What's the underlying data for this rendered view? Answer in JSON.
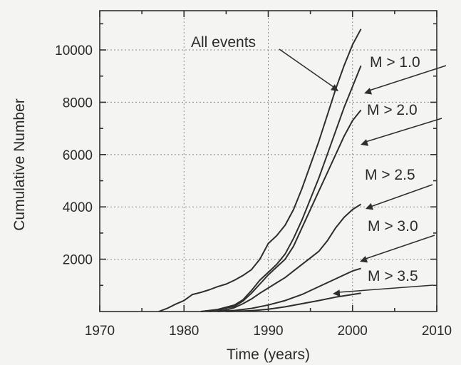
{
  "chart_data": {
    "type": "line",
    "title": "",
    "xlabel": "Time (years)",
    "ylabel": "Cumulative Number",
    "xlim": [
      1970,
      2010
    ],
    "ylim": [
      0,
      11500
    ],
    "xticks": [
      1970,
      1980,
      1990,
      2000,
      2010
    ],
    "yticks": [
      2000,
      4000,
      6000,
      8000,
      10000
    ],
    "grid": "dotted",
    "series": [
      {
        "name": "All events",
        "x": [
          1977,
          1978,
          1979,
          1980,
          1981,
          1982,
          1983,
          1984,
          1985,
          1986,
          1987,
          1988,
          1989,
          1990,
          1991,
          1992,
          1993,
          1994,
          1995,
          1996,
          1997,
          1998,
          1999,
          2000,
          2001
        ],
        "y": [
          0,
          120,
          280,
          420,
          650,
          730,
          830,
          950,
          1050,
          1200,
          1380,
          1600,
          2000,
          2600,
          2900,
          3300,
          3900,
          4700,
          5600,
          6500,
          7500,
          8500,
          9400,
          10200,
          10800
        ]
      },
      {
        "name": "M > 1.0",
        "x": [
          1982,
          1984,
          1986,
          1987,
          1988,
          1989,
          1990,
          1991,
          1992,
          1993,
          1994,
          1995,
          1996,
          1997,
          1998,
          1999,
          2000,
          2001
        ],
        "y": [
          0,
          80,
          250,
          450,
          800,
          1200,
          1500,
          1800,
          2200,
          2800,
          3500,
          4300,
          5100,
          6000,
          6900,
          7800,
          8600,
          9400
        ]
      },
      {
        "name": "M > 2.0",
        "x": [
          1982,
          1984,
          1986,
          1987,
          1988,
          1989,
          1990,
          1991,
          1992,
          1993,
          1994,
          1995,
          1996,
          1997,
          1998,
          1999,
          2000,
          2001
        ],
        "y": [
          0,
          60,
          200,
          400,
          700,
          1050,
          1400,
          1700,
          2000,
          2500,
          3200,
          3900,
          4600,
          5300,
          6000,
          6700,
          7300,
          7700
        ]
      },
      {
        "name": "M > 2.5",
        "x": [
          1983,
          1985,
          1986,
          1987,
          1988,
          1989,
          1990,
          1991,
          1992,
          1993,
          1994,
          1995,
          1996,
          1997,
          1998,
          1999,
          2000,
          2001
        ],
        "y": [
          0,
          60,
          150,
          300,
          480,
          700,
          900,
          1100,
          1300,
          1550,
          1800,
          2050,
          2300,
          2700,
          3200,
          3600,
          3900,
          4100
        ]
      },
      {
        "name": "M > 3.0",
        "x": [
          1984,
          1986,
          1988,
          1990,
          1992,
          1994,
          1996,
          1998,
          2000,
          2001
        ],
        "y": [
          0,
          40,
          120,
          250,
          420,
          650,
          950,
          1250,
          1550,
          1650
        ]
      },
      {
        "name": "M > 3.5",
        "x": [
          1985,
          1988,
          1990,
          1992,
          1994,
          1996,
          1998,
          2000,
          2001
        ],
        "y": [
          0,
          30,
          90,
          180,
          300,
          420,
          550,
          650,
          700
        ]
      }
    ],
    "annotations": [
      {
        "text": "All events",
        "points_to": "All events"
      },
      {
        "text": "M > 1.0",
        "points_to": "M > 1.0"
      },
      {
        "text": "M > 2.0",
        "points_to": "M > 2.0"
      },
      {
        "text": "M > 2.5",
        "points_to": "M > 2.5"
      },
      {
        "text": "M > 3.0",
        "points_to": "M > 3.0"
      },
      {
        "text": "M > 3.5",
        "points_to": "M > 3.5"
      }
    ]
  }
}
